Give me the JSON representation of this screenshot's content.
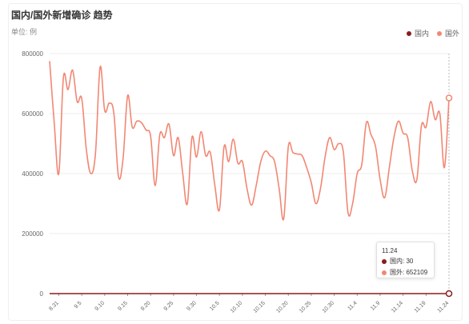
{
  "title": "国内/国外新增确诊 趋势",
  "unit": "单位: 例",
  "colors": {
    "domestic": "#8b1c1c",
    "foreign": "#f28773",
    "grid": "#eeeeee",
    "axis": "#333333"
  },
  "legend": [
    {
      "name": "国内",
      "color": "#8b1c1c"
    },
    {
      "name": "国外",
      "color": "#f28773"
    }
  ],
  "tooltip": {
    "date": "11.24",
    "rows": [
      {
        "label": "国内: 30",
        "color": "#8b1c1c"
      },
      {
        "label": "国外: 652109",
        "color": "#f28773"
      }
    ]
  },
  "chart_data": {
    "type": "line",
    "title": "国内/国外新增确诊 趋势",
    "ylabel": "单位: 例",
    "ylim": [
      0,
      800000
    ],
    "yticks": [
      0,
      200000,
      400000,
      600000,
      800000
    ],
    "grid": true,
    "legend_position": "top-right",
    "x_tick_labels": [
      "8.31",
      "9.5",
      "9.10",
      "9.15",
      "9.20",
      "9.25",
      "9.30",
      "10.5",
      "10.10",
      "10.15",
      "10.20",
      "10.25",
      "10.30",
      "11.4",
      "11.9",
      "11.14",
      "11.19",
      "11.24"
    ],
    "x": [
      "8.29",
      "8.30",
      "8.31",
      "9.1",
      "9.2",
      "9.3",
      "9.4",
      "9.5",
      "9.6",
      "9.7",
      "9.8",
      "9.9",
      "9.10",
      "9.11",
      "9.12",
      "9.13",
      "9.14",
      "9.15",
      "9.16",
      "9.17",
      "9.18",
      "9.19",
      "9.20",
      "9.21",
      "9.22",
      "9.23",
      "9.24",
      "9.25",
      "9.26",
      "9.27",
      "9.28",
      "9.29",
      "9.30",
      "10.1",
      "10.2",
      "10.3",
      "10.4",
      "10.5",
      "10.6",
      "10.7",
      "10.8",
      "10.9",
      "10.10",
      "10.11",
      "10.12",
      "10.13",
      "10.14",
      "10.15",
      "10.16",
      "10.17",
      "10.18",
      "10.19",
      "10.20",
      "10.21",
      "10.22",
      "10.23",
      "10.24",
      "10.25",
      "10.26",
      "10.27",
      "10.28",
      "10.29",
      "10.30",
      "10.31",
      "11.1",
      "11.2",
      "11.3",
      "11.4",
      "11.5",
      "11.6",
      "11.7",
      "11.8",
      "11.9",
      "11.10",
      "11.11",
      "11.12",
      "11.13",
      "11.14",
      "11.15",
      "11.16",
      "11.17",
      "11.18",
      "11.19",
      "11.20",
      "11.21",
      "11.22",
      "11.23",
      "11.24"
    ],
    "series": [
      {
        "name": "国内",
        "values": [
          20,
          25,
          30,
          22,
          18,
          24,
          20,
          26,
          30,
          22,
          25,
          28,
          20,
          24,
          26,
          22,
          30,
          25,
          20,
          24,
          28,
          22,
          26,
          30,
          20,
          24,
          22,
          28,
          30,
          25,
          20,
          24,
          26,
          22,
          30,
          25,
          20,
          24,
          28,
          22,
          26,
          30,
          20,
          24,
          22,
          28,
          30,
          25,
          20,
          24,
          26,
          22,
          30,
          25,
          20,
          24,
          28,
          22,
          26,
          30,
          20,
          24,
          22,
          28,
          30,
          25,
          20,
          24,
          26,
          22,
          30,
          25,
          20,
          24,
          28,
          22,
          26,
          30,
          20,
          24,
          22,
          28,
          30,
          25,
          20,
          24,
          26,
          30
        ]
      },
      {
        "name": "国外",
        "values": [
          775000,
          570000,
          400000,
          720000,
          680000,
          745000,
          640000,
          650000,
          480000,
          400000,
          470000,
          755000,
          610000,
          635000,
          600000,
          390000,
          450000,
          660000,
          555000,
          575000,
          570000,
          545000,
          525000,
          360000,
          530000,
          520000,
          565000,
          460000,
          520000,
          400000,
          300000,
          520000,
          455000,
          540000,
          460000,
          470000,
          360000,
          280000,
          490000,
          440000,
          515000,
          435000,
          440000,
          350000,
          295000,
          360000,
          440000,
          475000,
          460000,
          440000,
          350000,
          250000,
          490000,
          470000,
          465000,
          460000,
          420000,
          370000,
          300000,
          350000,
          455000,
          520000,
          480000,
          500000,
          470000,
          270000,
          300000,
          400000,
          430000,
          570000,
          530000,
          490000,
          380000,
          320000,
          420000,
          520000,
          575000,
          535000,
          520000,
          410000,
          380000,
          560000,
          555000,
          640000,
          580000,
          600000,
          420000,
          652109
        ]
      }
    ]
  }
}
